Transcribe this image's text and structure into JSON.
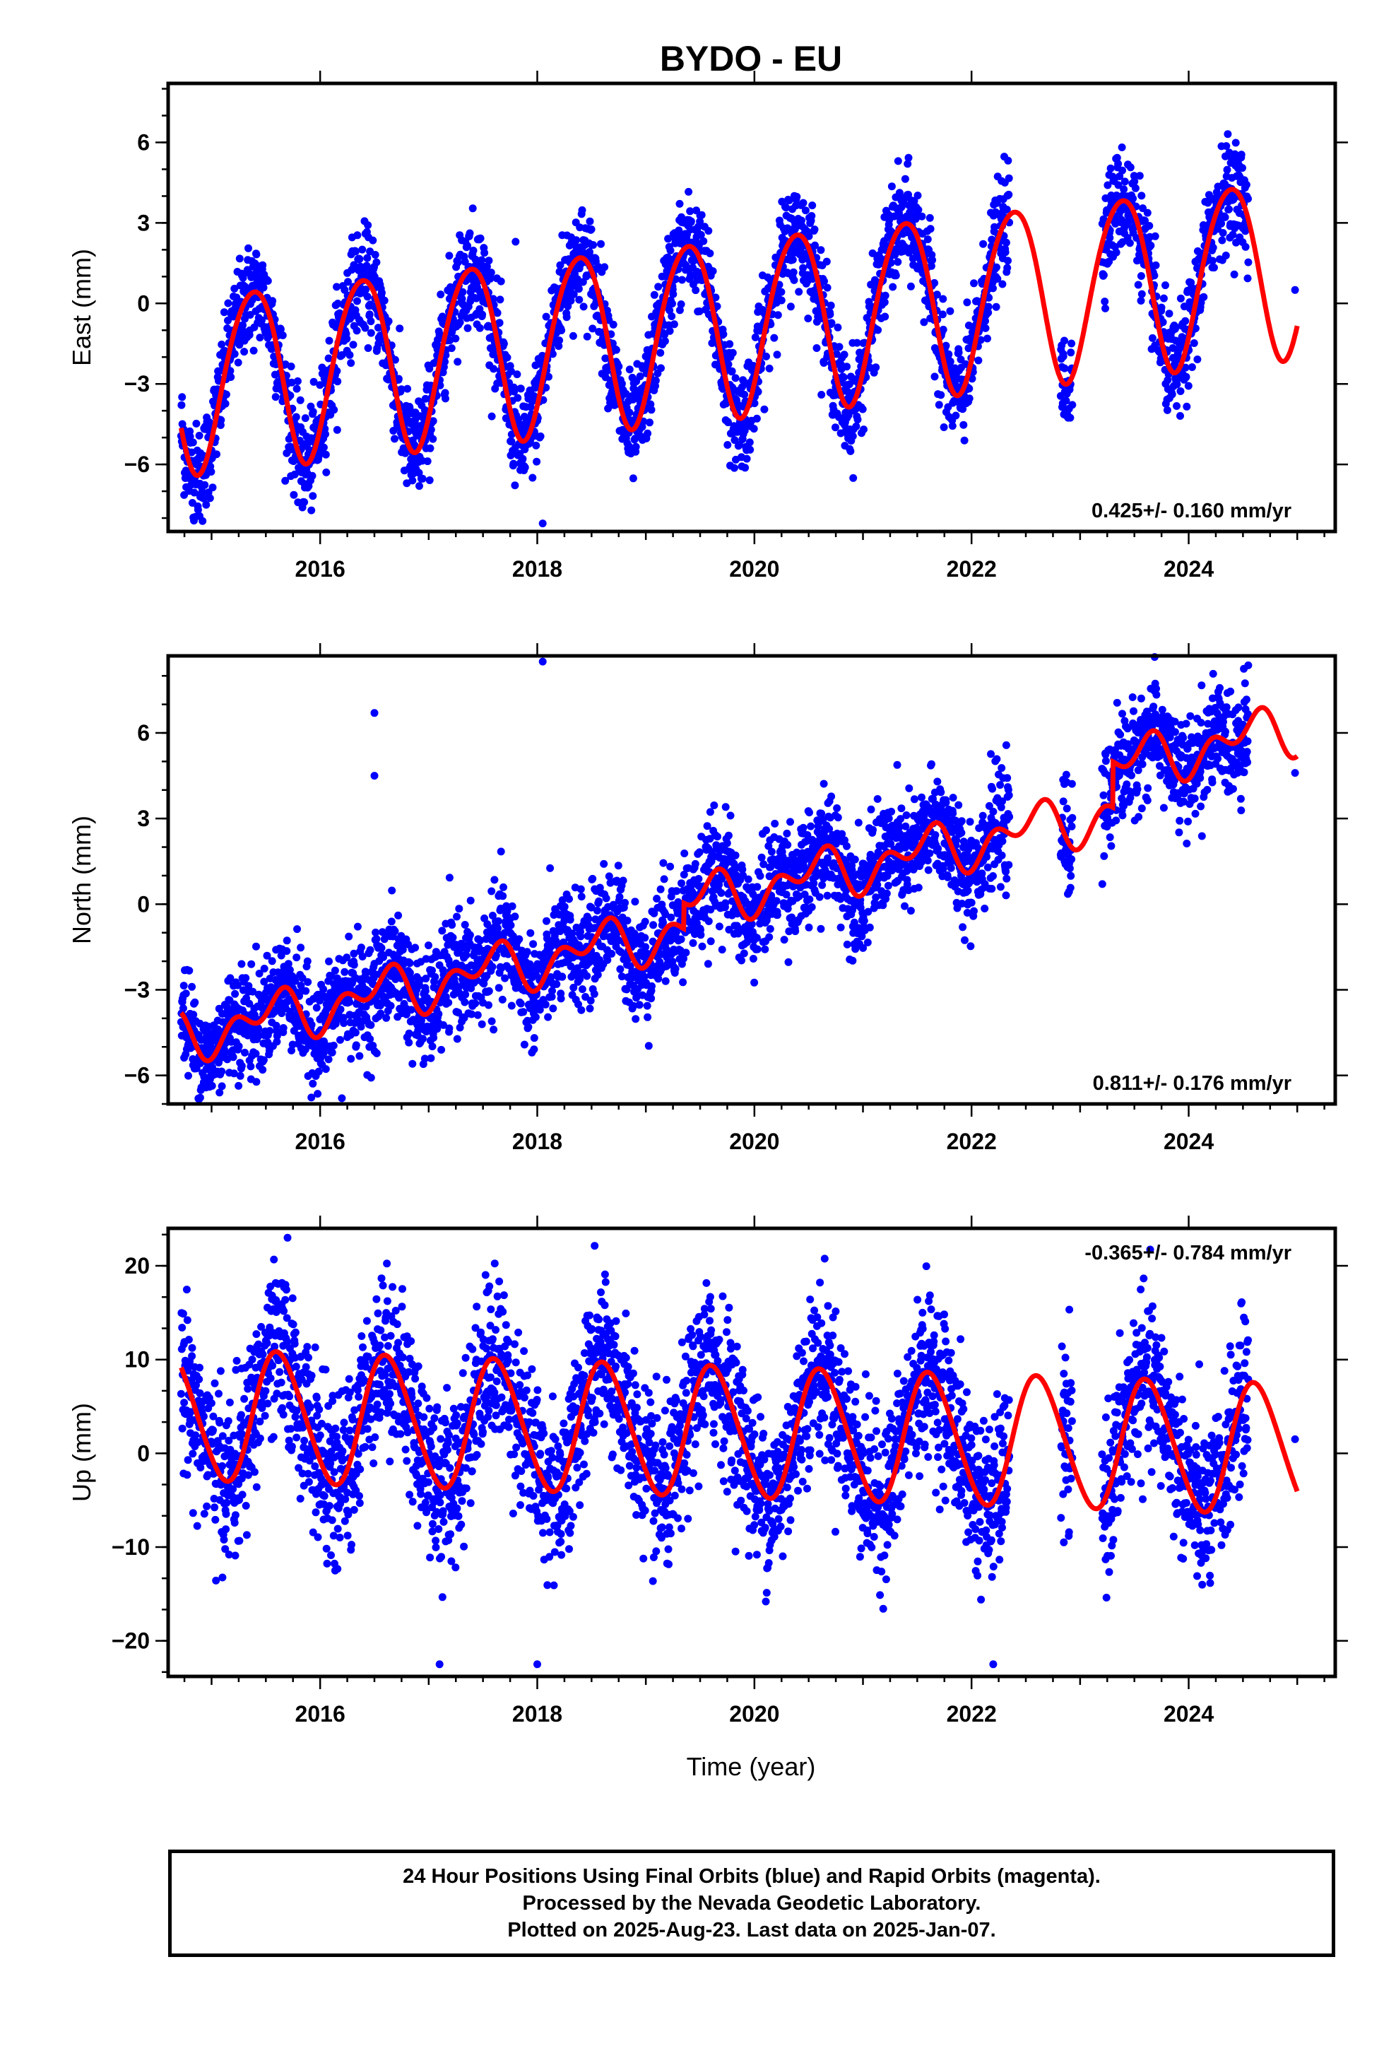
{
  "title": "BYDO - EU",
  "colors": {
    "data_points": "#0000ff",
    "model_curve": "#ff0000",
    "frame": "#000000"
  },
  "footer": {
    "line1": "24 Hour Positions Using Final Orbits (blue) and Rapid Orbits (magenta).",
    "line2": "Processed by the Nevada Geodetic Laboratory.",
    "line3": "Plotted on 2025-Aug-23. Last data on 2025-Jan-07."
  },
  "chart_data": [
    {
      "type": "scatter",
      "component": "east",
      "ylabel": "East (mm)",
      "xlim": [
        2014.6,
        2025.35
      ],
      "ylim": [
        -8.5,
        8.2
      ],
      "x_ticks": [
        2016,
        2018,
        2020,
        2022,
        2024
      ],
      "y_ticks": [
        -6,
        -3,
        0,
        3,
        6
      ],
      "y_tick_labels": [
        "−6",
        "−3",
        "0",
        "3",
        "6"
      ],
      "x_tick_labels": [
        "2016",
        "2018",
        "2020",
        "2022",
        "2024"
      ],
      "rate_label": "0.425+/- 0.160 mm/yr",
      "rate_label_position": "bottom-right",
      "model": {
        "start": 2014.72,
        "end": 2025.0,
        "offset": -0.65,
        "trend": 0.425,
        "annual_amp": 3.3,
        "annual_peak": 0.38,
        "semiannual_amp": 0.3,
        "semiannual_phase": 0.1
      },
      "gaps": [
        [
          2022.35,
          2022.82
        ],
        [
          2022.93,
          2023.2
        ],
        [
          2024.55,
          2024.97
        ]
      ],
      "outliers": [
        [
          2024.98,
          0.5
        ],
        [
          2018.05,
          -8.2
        ],
        [
          2016.85,
          -6.6
        ],
        [
          2017.8,
          2.3
        ]
      ],
      "scatter_sigma": 0.95
    },
    {
      "type": "scatter",
      "component": "north",
      "ylabel": "North (mm)",
      "xlim": [
        2014.6,
        2025.35
      ],
      "ylim": [
        -7.0,
        8.7
      ],
      "x_ticks": [
        2016,
        2018,
        2020,
        2022,
        2024
      ],
      "y_ticks": [
        -6,
        -3,
        0,
        3,
        6
      ],
      "y_tick_labels": [
        "−6",
        "−3",
        "0",
        "3",
        "6"
      ],
      "x_tick_labels": [
        "2016",
        "2018",
        "2020",
        "2022",
        "2024"
      ],
      "rate_label": "0.811+/- 0.176 mm/yr",
      "rate_label_position": "bottom-right",
      "model": {
        "start": 2014.72,
        "end": 2025.0,
        "offset": -0.35,
        "trend": 0.811,
        "annual_amp": 0.6,
        "annual_peak": 0.55,
        "semiannual_amp": 0.55,
        "semiannual_phase": 0.2
      },
      "offsets": [
        [
          2019.35,
          0.9
        ],
        [
          2023.3,
          1.6
        ]
      ],
      "gaps": [
        [
          2022.35,
          2022.82
        ],
        [
          2022.93,
          2023.2
        ],
        [
          2024.55,
          2024.97
        ]
      ],
      "outliers": [
        [
          2024.98,
          4.6
        ],
        [
          2018.05,
          8.5
        ],
        [
          2016.5,
          6.7
        ],
        [
          2016.5,
          4.5
        ],
        [
          2016.2,
          -6.8
        ]
      ],
      "scatter_sigma": 0.95
    },
    {
      "type": "scatter",
      "component": "up",
      "ylabel": "Up (mm)",
      "xlabel": "Time (year)",
      "xlim": [
        2014.6,
        2025.35
      ],
      "ylim": [
        -23.8,
        24.0
      ],
      "x_ticks": [
        2016,
        2018,
        2020,
        2022,
        2024
      ],
      "y_ticks": [
        -20,
        -10,
        0,
        10,
        20
      ],
      "y_tick_labels": [
        "−20",
        "−10",
        "0",
        "10",
        "20"
      ],
      "x_tick_labels": [
        "2016",
        "2018",
        "2020",
        "2022",
        "2024"
      ],
      "rate_label": "-0.365+/- 0.784 mm/yr",
      "rate_label_position": "top-right",
      "model": {
        "start": 2014.72,
        "end": 2025.0,
        "offset": 2.2,
        "trend": -0.365,
        "annual_amp": 6.9,
        "annual_peak": 0.62,
        "semiannual_amp": 0.6,
        "semiannual_phase": 0.0
      },
      "gaps": [
        [
          2022.35,
          2022.82
        ],
        [
          2022.93,
          2023.2
        ],
        [
          2024.55,
          2024.97
        ]
      ],
      "outliers": [
        [
          2024.98,
          1.5
        ],
        [
          2022.85,
          -9.5
        ],
        [
          2022.85,
          8.5
        ],
        [
          2015.7,
          23
        ],
        [
          2018.0,
          -22.5
        ],
        [
          2017.1,
          -22.5
        ],
        [
          2022.2,
          -22.5
        ]
      ],
      "scatter_sigma": 4.3
    }
  ]
}
